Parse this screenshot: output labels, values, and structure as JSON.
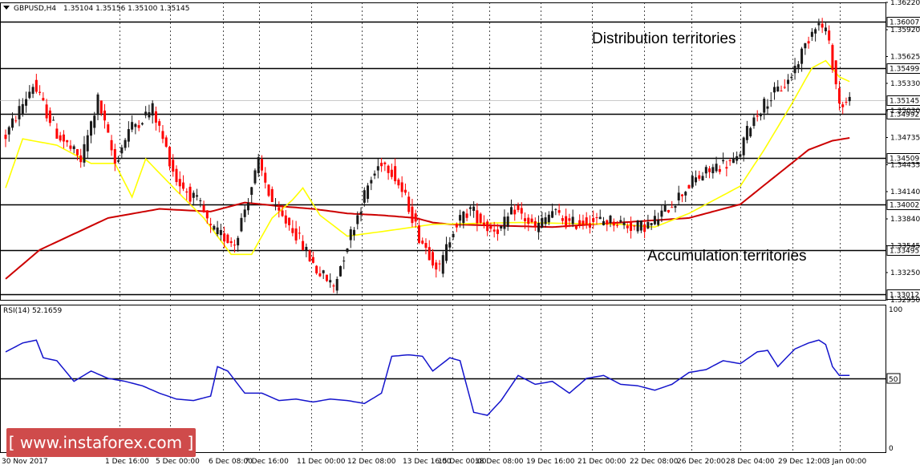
{
  "header": {
    "symbol_timeframe": "GBPUSD,H4",
    "ohlc": "1.35104 1.35156 1.35100 1.35145"
  },
  "annotations": {
    "top": "Distribution territories",
    "bottom": "Accumulation territories"
  },
  "rsi_label": "RSI(14) 52.1659",
  "logo_text": "[ www.instaforex.com ]",
  "colors": {
    "bull": "#1a1a1a",
    "bear": "#ff0000",
    "ma_fast": "#ffff00",
    "ma_slow": "#cc0000",
    "rsi": "#1414cc",
    "logo_bg": "#cf4b4b"
  },
  "chart_data": [
    {
      "type": "candlestick",
      "title": "GBPUSD,H4",
      "ylim": [
        1.3295,
        1.3622
      ],
      "price_ticks": [
        "1.36220",
        "1.35920",
        "1.35625",
        "1.35330",
        "1.35030",
        "1.34735",
        "1.34435",
        "1.34140",
        "1.33840",
        "1.33545",
        "1.33250",
        "1.32950"
      ],
      "level_lines": [
        "1.36007",
        "1.35499",
        "1.34992",
        "1.34509",
        "1.34002",
        "1.33495",
        "1.33012"
      ],
      "current_price": "1.35145",
      "x_labels": [
        "30 Nov 2017",
        "1 Dec 16:00",
        "5 Dec 00:00",
        "6 Dec 08:00",
        "7 Dec 16:00",
        "11 Dec 00:00",
        "12 Dec 08:00",
        "13 Dec 16:00",
        "15 Dec 00:00",
        "18 Dec 08:00",
        "19 Dec 16:00",
        "21 Dec 00:00",
        "22 Dec 08:00",
        "26 Dec 20:00",
        "28 Dec 04:00",
        "29 Dec 12:00",
        "3 Jan 00:00"
      ],
      "anchors": [
        [
          0,
          1.3475
        ],
        [
          8,
          1.3532
        ],
        [
          15,
          1.3478
        ],
        [
          22,
          1.3448
        ],
        [
          27,
          1.3515
        ],
        [
          32,
          1.3445
        ],
        [
          36,
          1.3482
        ],
        [
          43,
          1.3505
        ],
        [
          50,
          1.3427
        ],
        [
          57,
          1.3398
        ],
        [
          60,
          1.3372
        ],
        [
          67,
          1.3358
        ],
        [
          74,
          1.3445
        ],
        [
          79,
          1.3392
        ],
        [
          84,
          1.3374
        ],
        [
          91,
          1.3328
        ],
        [
          96,
          1.331
        ],
        [
          101,
          1.3368
        ],
        [
          106,
          1.342
        ],
        [
          110,
          1.3448
        ],
        [
          113,
          1.3438
        ],
        [
          118,
          1.3398
        ],
        [
          121,
          1.3365
        ],
        [
          127,
          1.3328
        ],
        [
          131,
          1.3375
        ],
        [
          136,
          1.3395
        ],
        [
          141,
          1.3375
        ],
        [
          145,
          1.3373
        ],
        [
          149,
          1.3395
        ],
        [
          155,
          1.3373
        ],
        [
          160,
          1.3392
        ],
        [
          165,
          1.3378
        ],
        [
          170,
          1.3382
        ],
        [
          178,
          1.3382
        ],
        [
          184,
          1.3375
        ],
        [
          189,
          1.3378
        ],
        [
          196,
          1.3405
        ],
        [
          201,
          1.3425
        ],
        [
          208,
          1.3442
        ],
        [
          214,
          1.3448
        ],
        [
          218,
          1.349
        ],
        [
          223,
          1.3515
        ],
        [
          229,
          1.3535
        ],
        [
          234,
          1.3575
        ],
        [
          237,
          1.36
        ],
        [
          240,
          1.3592
        ],
        [
          242,
          1.3555
        ],
        [
          244,
          1.351
        ],
        [
          246,
          1.3512
        ],
        [
          247,
          1.3514
        ]
      ],
      "ma_fast": [
        [
          0,
          1.3418
        ],
        [
          5,
          1.3472
        ],
        [
          15,
          1.3465
        ],
        [
          25,
          1.3445
        ],
        [
          32,
          1.3445
        ],
        [
          37,
          1.3408
        ],
        [
          41,
          1.345
        ],
        [
          50,
          1.3415
        ],
        [
          58,
          1.3385
        ],
        [
          66,
          1.3345
        ],
        [
          72,
          1.3345
        ],
        [
          78,
          1.3385
        ],
        [
          84,
          1.3405
        ],
        [
          87,
          1.3418
        ],
        [
          92,
          1.3388
        ],
        [
          100,
          1.3365
        ],
        [
          110,
          1.337
        ],
        [
          125,
          1.3378
        ],
        [
          150,
          1.338
        ],
        [
          180,
          1.3378
        ],
        [
          190,
          1.3375
        ],
        [
          200,
          1.339
        ],
        [
          215,
          1.342
        ],
        [
          222,
          1.346
        ],
        [
          230,
          1.351
        ],
        [
          236,
          1.355
        ],
        [
          240,
          1.3558
        ],
        [
          244,
          1.354
        ],
        [
          247,
          1.3535
        ]
      ],
      "ma_slow": [
        [
          0,
          1.3318
        ],
        [
          10,
          1.335
        ],
        [
          30,
          1.3385
        ],
        [
          45,
          1.3395
        ],
        [
          60,
          1.3392
        ],
        [
          70,
          1.3402
        ],
        [
          80,
          1.3398
        ],
        [
          90,
          1.3395
        ],
        [
          100,
          1.339
        ],
        [
          110,
          1.3388
        ],
        [
          120,
          1.3385
        ],
        [
          125,
          1.338
        ],
        [
          130,
          1.3378
        ],
        [
          160,
          1.3375
        ],
        [
          200,
          1.3385
        ],
        [
          215,
          1.34
        ],
        [
          225,
          1.343
        ],
        [
          235,
          1.346
        ],
        [
          242,
          1.347
        ],
        [
          247,
          1.3473
        ]
      ]
    },
    {
      "type": "line",
      "title": "RSI(14) 52.1659",
      "ylim": [
        0,
        100
      ],
      "ticks": [
        "100",
        "50",
        "0"
      ],
      "reference_level": 50,
      "series": [
        {
          "values_xy": [
            [
              0,
              68
            ],
            [
              5,
              74
            ],
            [
              9,
              76
            ],
            [
              11,
              64
            ],
            [
              15,
              62
            ],
            [
              20,
              48
            ],
            [
              25,
              55
            ],
            [
              30,
              50
            ],
            [
              35,
              48
            ],
            [
              40,
              45
            ],
            [
              45,
              40
            ],
            [
              50,
              36
            ],
            [
              55,
              35
            ],
            [
              60,
              38
            ],
            [
              62,
              58
            ],
            [
              65,
              55
            ],
            [
              70,
              40
            ],
            [
              75,
              40
            ],
            [
              80,
              35
            ],
            [
              85,
              36
            ],
            [
              90,
              34
            ],
            [
              95,
              36
            ],
            [
              100,
              35
            ],
            [
              105,
              33
            ],
            [
              110,
              40
            ],
            [
              113,
              65
            ],
            [
              118,
              66
            ],
            [
              122,
              65
            ],
            [
              125,
              55
            ],
            [
              130,
              64
            ],
            [
              133,
              62
            ],
            [
              137,
              27
            ],
            [
              141,
              25
            ],
            [
              145,
              35
            ],
            [
              150,
              52
            ],
            [
              155,
              46
            ],
            [
              160,
              48
            ],
            [
              165,
              40
            ],
            [
              170,
              50
            ],
            [
              175,
              52
            ],
            [
              180,
              46
            ],
            [
              185,
              45
            ],
            [
              190,
              42
            ],
            [
              195,
              46
            ],
            [
              200,
              54
            ],
            [
              205,
              56
            ],
            [
              210,
              62
            ],
            [
              215,
              60
            ],
            [
              220,
              68
            ],
            [
              223,
              69
            ],
            [
              226,
              58
            ],
            [
              231,
              70
            ],
            [
              235,
              74
            ],
            [
              238,
              76
            ],
            [
              240,
              73
            ],
            [
              242,
              58
            ],
            [
              244,
              52
            ],
            [
              247,
              52
            ]
          ]
        }
      ]
    }
  ]
}
